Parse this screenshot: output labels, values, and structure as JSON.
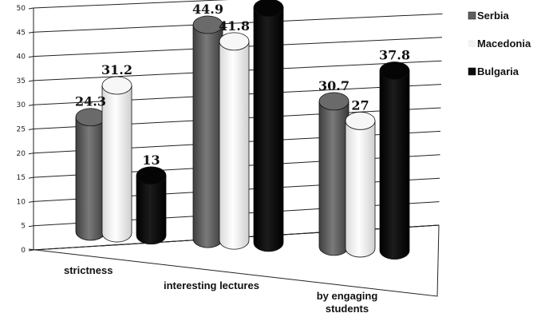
{
  "chart_data": {
    "type": "bar",
    "categories": [
      "strictness",
      "interesting lectures",
      "by engaging students"
    ],
    "series": [
      {
        "name": "Serbia",
        "values": [
          24.3,
          44.9,
          30.7
        ],
        "color": "#5f5f5f"
      },
      {
        "name": "Macedonia",
        "values": [
          31.2,
          41.8,
          27
        ],
        "color": "#f2f2f2"
      },
      {
        "name": "Bulgaria",
        "values": [
          13,
          49.2,
          37.8
        ],
        "color": "#0a0a0a"
      }
    ],
    "data_labels": [
      [
        "24.3",
        "44.9",
        "30.7"
      ],
      [
        "31.2",
        "41.8",
        "27"
      ],
      [
        "13",
        "49.2",
        "37.8"
      ]
    ],
    "yticks": [
      "0",
      "5",
      "10",
      "15",
      "20",
      "25",
      "30",
      "35",
      "40",
      "45",
      "50"
    ],
    "ylim": [
      0,
      50
    ],
    "grid": true,
    "legend_position": "right",
    "style": "3D cylinder"
  }
}
